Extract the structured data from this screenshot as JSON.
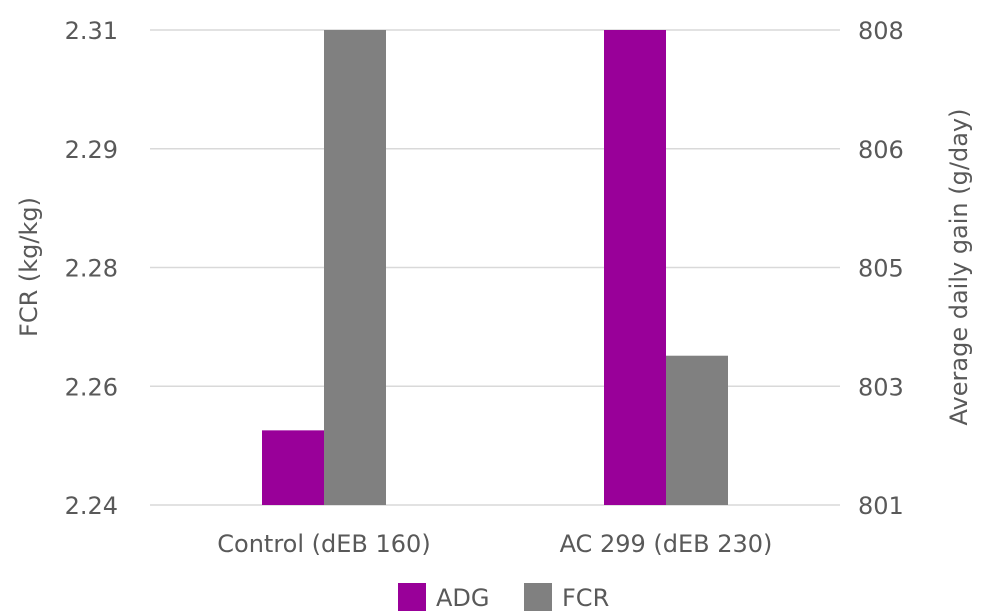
{
  "chart_data": {
    "type": "bar",
    "categories": [
      "Control (dEB 160)",
      "AC 299 (dEB 230)"
    ],
    "series": [
      {
        "name": "ADG",
        "axis": "right",
        "values": [
          802.1,
          808
        ],
        "color": "#990099"
      },
      {
        "name": "FCR",
        "axis": "left",
        "values": [
          2.31,
          2.262
        ],
        "color": "#808080"
      }
    ],
    "y_left": {
      "label": "FCR (kg/kg)",
      "ticks": [
        "2.24",
        "2.26",
        "2.28",
        "2.29",
        "2.31"
      ],
      "ylim": [
        2.24,
        2.31
      ]
    },
    "y_right": {
      "label": "Average daily gain (g/day)",
      "ticks": [
        "801",
        "803",
        "805",
        "806",
        "808"
      ],
      "ylim": [
        801,
        808
      ]
    },
    "grid": true,
    "legend_position": "bottom"
  }
}
